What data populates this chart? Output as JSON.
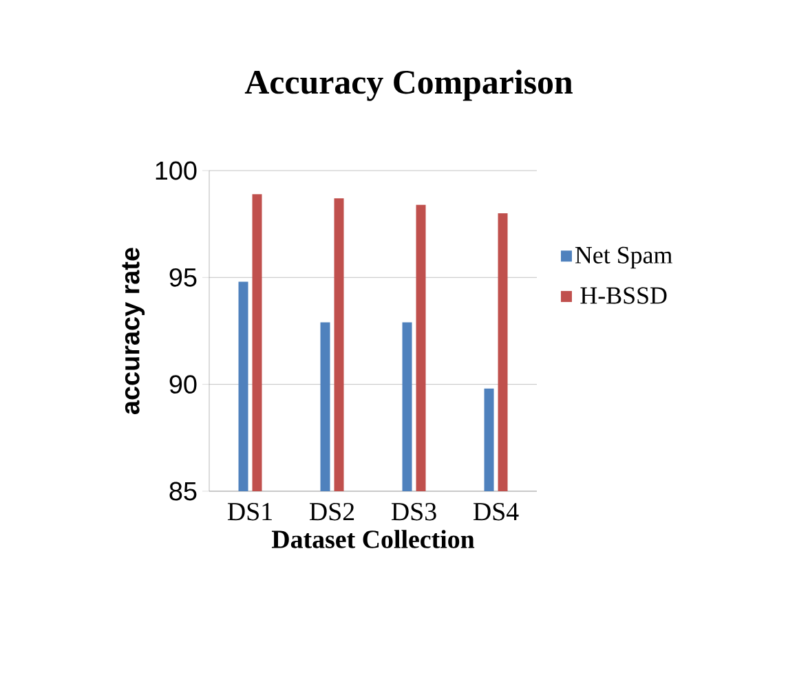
{
  "chart_data": {
    "type": "bar",
    "title": "Accuracy  Comparison",
    "xlabel": "Dataset Collection",
    "ylabel": "accuracy  rate",
    "categories": [
      "DS1",
      "DS2",
      "DS3",
      "DS4"
    ],
    "series": [
      {
        "name": "Net Spam",
        "color": "#4f81bd",
        "values": [
          94.8,
          92.9,
          92.9,
          89.8
        ]
      },
      {
        "name": "H-BSSD",
        "color": "#c0504d",
        "values": [
          98.9,
          98.7,
          98.4,
          98.0
        ]
      }
    ],
    "ylim": [
      85,
      100
    ],
    "yticks": [
      85,
      90,
      95,
      100
    ],
    "grid": "y",
    "legend": "right"
  }
}
